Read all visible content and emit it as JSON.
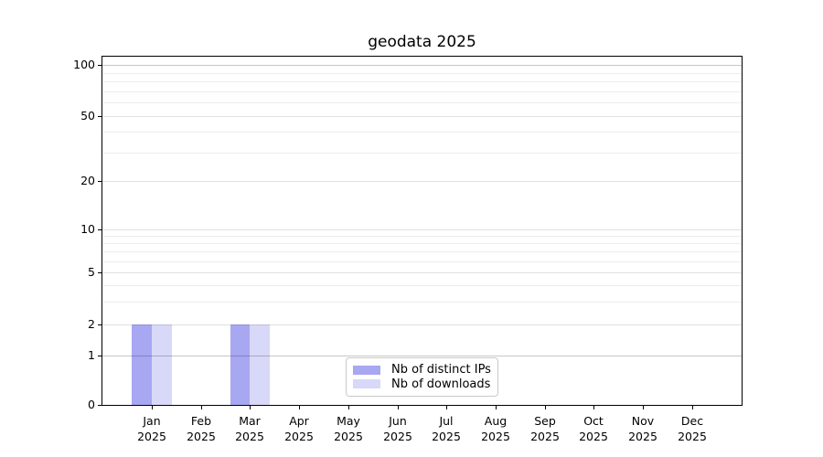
{
  "chart_data": {
    "type": "bar",
    "title": "geodata 2025",
    "categories": [
      "Jan",
      "Feb",
      "Mar",
      "Apr",
      "May",
      "Jun",
      "Jul",
      "Aug",
      "Sep",
      "Oct",
      "Nov",
      "Dec"
    ],
    "year_label": "2025",
    "series": [
      {
        "name": "Nb of distinct IPs",
        "color": "#a7a7f2",
        "values": [
          2,
          0,
          2,
          0,
          0,
          0,
          0,
          0,
          0,
          0,
          0,
          0
        ]
      },
      {
        "name": "Nb of downloads",
        "color": "#d8d8f8",
        "values": [
          2,
          0,
          2,
          0,
          0,
          0,
          0,
          0,
          0,
          0,
          0,
          0
        ]
      }
    ],
    "yscale": "symlog",
    "ylim": [
      0,
      110
    ],
    "yticks": [
      0,
      1,
      2,
      5,
      10,
      20,
      50,
      100
    ],
    "yticks_minor": [
      3,
      4,
      6,
      7,
      8,
      9,
      30,
      40,
      60,
      70,
      80,
      90
    ],
    "grid": "horizontal",
    "legend_position": "lower center"
  },
  "colors": {
    "background": "#ffffff",
    "spine": "#000000",
    "text": "#000000",
    "grid_strong": "rgba(0,0,0,0.22)",
    "grid_major": "rgba(0,0,0,0.12)",
    "grid_minor": "rgba(0,0,0,0.07)",
    "legend_border": "#c9c9c9"
  }
}
